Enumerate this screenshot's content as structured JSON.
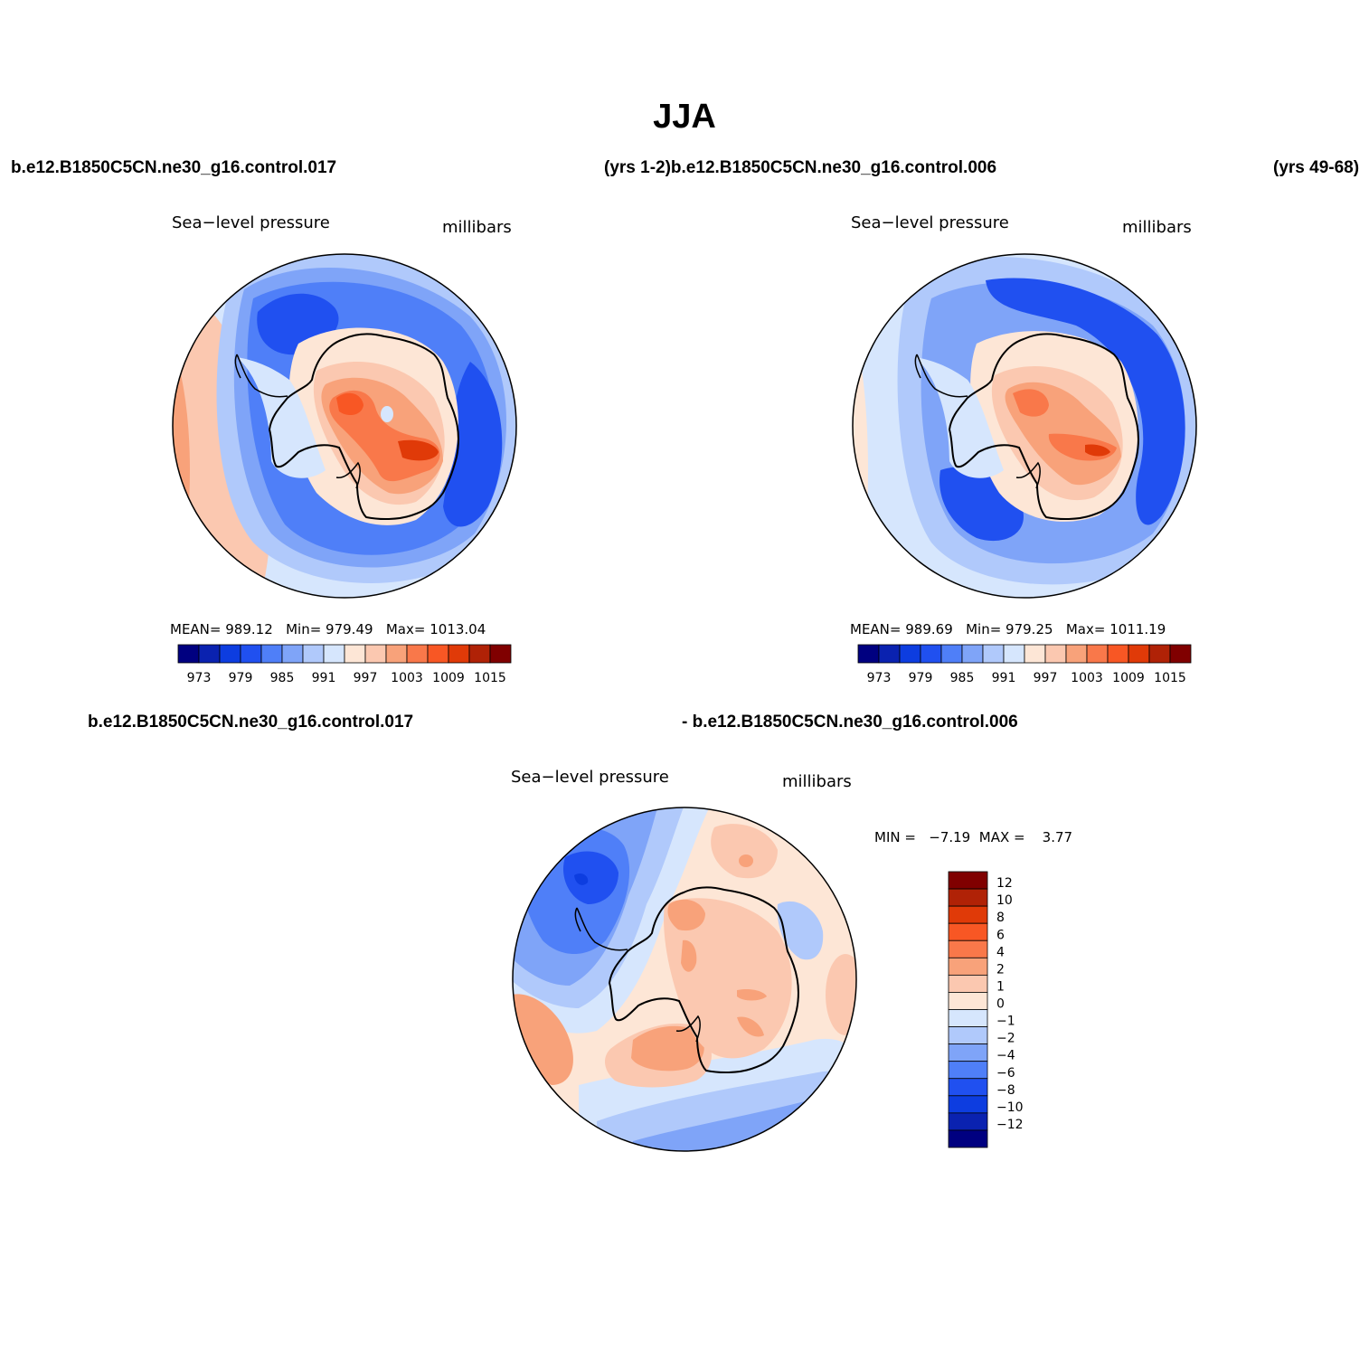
{
  "title": "JJA",
  "cases": {
    "top_left": "b.e12.B1850C5CN.ne30_g16.control.017",
    "top_mid": "(yrs 1-2)b.e12.B1850C5CN.ne30_g16.control.006",
    "top_right": "(yrs 49-68)",
    "diff_left": "b.e12.B1850C5CN.ne30_g16.control.017",
    "diff_right": "- b.e12.B1850C5CN.ne30_g16.control.006"
  },
  "colors": {
    "blues": [
      "#000080",
      "#0a22b0",
      "#0d3de0",
      "#2050f0",
      "#4f7ff8",
      "#7fa4f8",
      "#b0c9fb",
      "#d6e6fd"
    ],
    "reds": [
      "#fde6d6",
      "#fbc8b0",
      "#f8a27a",
      "#f9784a",
      "#f85724",
      "#e03a08",
      "#b02206",
      "#800000"
    ]
  },
  "chart_data": [
    {
      "type": "heatmap",
      "projection": "south polar stereographic",
      "panel": "control.017",
      "left_label": "Sea−level pressure",
      "right_label": "millibars",
      "stats": {
        "mean_label": "MEAN=",
        "mean": "989.12",
        "min_label": "Min=",
        "min": "979.49",
        "max_label": "Max=",
        "max": "1013.04"
      },
      "colorbar_levels": [
        970,
        973,
        976,
        979,
        982,
        985,
        988,
        991,
        994,
        997,
        1000,
        1003,
        1006,
        1009,
        1012,
        1015
      ],
      "colorbar_tick_labels": [
        "973",
        "979",
        "985",
        "991",
        "997",
        "1003",
        "1009",
        "1015"
      ]
    },
    {
      "type": "heatmap",
      "projection": "south polar stereographic",
      "panel": "control.006",
      "left_label": "Sea−level pressure",
      "right_label": "millibars",
      "stats": {
        "mean_label": "MEAN=",
        "mean": "989.69",
        "min_label": "Min=",
        "min": "979.25",
        "max_label": "Max=",
        "max": "1011.19"
      },
      "colorbar_levels": [
        970,
        973,
        976,
        979,
        982,
        985,
        988,
        991,
        994,
        997,
        1000,
        1003,
        1006,
        1009,
        1012,
        1015
      ],
      "colorbar_tick_labels": [
        "973",
        "979",
        "985",
        "991",
        "997",
        "1003",
        "1009",
        "1015"
      ]
    },
    {
      "type": "heatmap",
      "projection": "south polar stereographic",
      "panel": "difference",
      "left_label": "Sea−level pressure",
      "right_label": "millibars",
      "stats": {
        "min_label": "MIN =",
        "min": "−7.19",
        "max_label": "MAX =",
        "max": "3.77"
      },
      "colorbar_tick_labels": [
        "12",
        "10",
        "8",
        "6",
        "4",
        "2",
        "1",
        "0",
        "−1",
        "−2",
        "−4",
        "−6",
        "−8",
        "−10",
        "−12"
      ]
    }
  ]
}
